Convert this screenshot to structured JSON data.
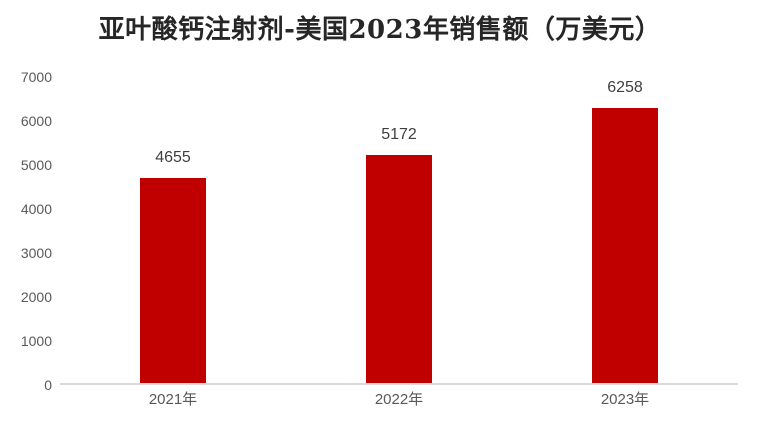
{
  "title": "亚叶酸钙注射剂-美国2023年销售额（万美元）",
  "colors": {
    "bar": "#c00000",
    "axis_line": "#d9d9d9",
    "tick_label": "#595959",
    "data_label": "#3f3f3f",
    "title_text": "#262626",
    "background": "#ffffff"
  },
  "chart_data": {
    "type": "bar",
    "title": "亚叶酸钙注射剂-美国2023年销售额（万美元）",
    "categories": [
      "2021年",
      "2022年",
      "2023年"
    ],
    "values": [
      4655,
      5172,
      6258
    ],
    "data_labels": [
      "4655",
      "5172",
      "6258"
    ],
    "xlabel": "",
    "ylabel": "",
    "ylim": [
      0,
      7000
    ],
    "yticks": [
      0,
      1000,
      2000,
      3000,
      4000,
      5000,
      6000,
      7000
    ],
    "grid": false,
    "legend": null,
    "bar_color": "#c00000"
  }
}
